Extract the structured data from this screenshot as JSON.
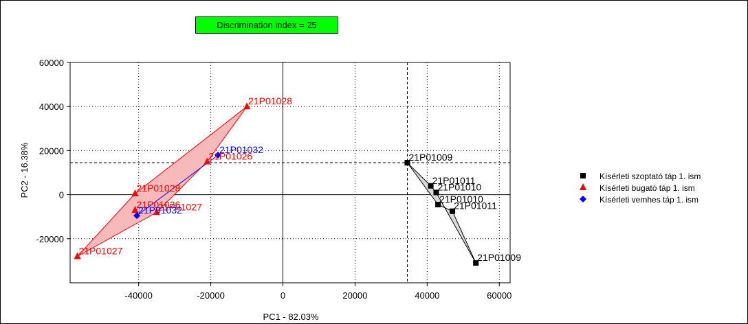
{
  "chart_data": {
    "type": "scatter",
    "badge": "Discrimination index = 25",
    "xlabel": "PC1 - 82.03%",
    "ylabel": "PC2 - 16.38%",
    "xlim": [
      -59000,
      63000
    ],
    "ylim": [
      -40000,
      60000
    ],
    "x_ticks": [
      {
        "value": -40000,
        "label": "-40000"
      },
      {
        "value": -20000,
        "label": "-20000"
      },
      {
        "value": 0,
        "label": "0"
      },
      {
        "value": 20000,
        "label": "20000"
      },
      {
        "value": 40000,
        "label": "40000"
      },
      {
        "value": 60000,
        "label": "60000"
      }
    ],
    "y_ticks": [
      {
        "value": 60000,
        "label": "60000"
      },
      {
        "value": 40000,
        "label": "40000"
      },
      {
        "value": 20000,
        "label": "20000"
      },
      {
        "value": 0,
        "label": "0"
      },
      {
        "value": -20000,
        "label": "-20000"
      }
    ],
    "reference_point": {
      "x": 34500,
      "y": 14500
    },
    "grid": "dotted",
    "legend_position": "right",
    "series": [
      {
        "name": "Kísérleti szoptató táp 1. ism",
        "color": "#000000",
        "fill": "#d9d9d9",
        "marker": "square",
        "points": [
          {
            "x": 34500,
            "y": 14500,
            "label": "21P01009"
          },
          {
            "x": 41000,
            "y": 4000,
            "label": "21P01011"
          },
          {
            "x": 42500,
            "y": 1000,
            "label": "21P01010"
          },
          {
            "x": 43000,
            "y": -4500,
            "label": "21P01010"
          },
          {
            "x": 47000,
            "y": -7500,
            "label": "21P01011"
          },
          {
            "x": 53500,
            "y": -31000,
            "label": "21P01009"
          }
        ],
        "hull": [
          0,
          1,
          2,
          5,
          4,
          3
        ]
      },
      {
        "name": "Kísérleti bugató táp 1. ism",
        "color": "#ff0000",
        "fill": "#f7b9b9",
        "marker": "triangle",
        "points": [
          {
            "x": -10000,
            "y": 40000,
            "label": "21P01028"
          },
          {
            "x": -21000,
            "y": 15000,
            "label": "21P01026"
          },
          {
            "x": -41000,
            "y": 500,
            "label": "21P01028"
          },
          {
            "x": -41000,
            "y": -7000,
            "label": "21P01026"
          },
          {
            "x": -35000,
            "y": -8000,
            "label": "21P01027"
          },
          {
            "x": -57000,
            "y": -28000,
            "label": "21P01027"
          }
        ],
        "hull": [
          0,
          1,
          4,
          5,
          2
        ]
      },
      {
        "name": "Kísérleti vemhes táp 1. ism",
        "color": "#0000ff",
        "fill": "none",
        "marker": "diamond",
        "points": [
          {
            "x": -18000,
            "y": 18000,
            "label": "21P01032"
          },
          {
            "x": -40500,
            "y": -9500,
            "label": "21P01032"
          }
        ],
        "hull": [
          0,
          1
        ]
      }
    ]
  }
}
